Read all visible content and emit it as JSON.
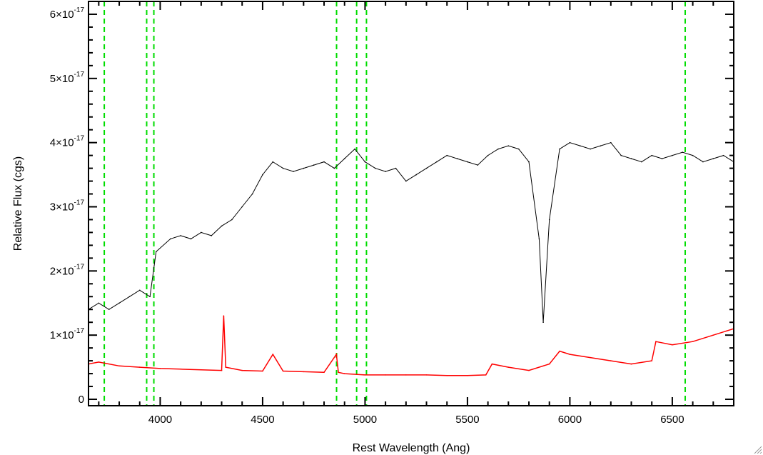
{
  "chart_data": {
    "type": "line",
    "xlabel": "Rest Wavelength (Ang)",
    "ylabel": "Relative Flux (cgs)",
    "xlim": [
      3650,
      6800
    ],
    "ylim": [
      -1e-18,
      6.2e-17
    ],
    "x_ticks": [
      4000,
      4500,
      5000,
      5500,
      6000,
      6500
    ],
    "x_tick_labels": [
      "4000",
      "4500",
      "5000",
      "5500",
      "6000",
      "6500"
    ],
    "y_ticks": [
      0,
      1e-17,
      2e-17,
      3e-17,
      4e-17,
      5e-17,
      6e-17
    ],
    "y_tick_labels": [
      {
        "mant": "0",
        "exp": ""
      },
      {
        "mant": "1×10",
        "exp": "-17"
      },
      {
        "mant": "2×10",
        "exp": "-17"
      },
      {
        "mant": "3×10",
        "exp": "-17"
      },
      {
        "mant": "4×10",
        "exp": "-17"
      },
      {
        "mant": "5×10",
        "exp": "-17"
      },
      {
        "mant": "6×10",
        "exp": "-17"
      }
    ],
    "grid": false,
    "reference_lines": {
      "x": [
        3727,
        3934,
        3969,
        4861,
        4959,
        5007,
        6563
      ],
      "color": "#00dd00",
      "style": "dashed"
    },
    "series": [
      {
        "color": "#000000",
        "x": [
          3650,
          3700,
          3750,
          3800,
          3850,
          3900,
          3950,
          3980,
          4050,
          4100,
          4150,
          4200,
          4250,
          4300,
          4350,
          4400,
          4450,
          4500,
          4550,
          4600,
          4650,
          4700,
          4750,
          4800,
          4850,
          4900,
          4950,
          5000,
          5050,
          5100,
          5150,
          5200,
          5250,
          5300,
          5350,
          5400,
          5450,
          5500,
          5550,
          5600,
          5650,
          5700,
          5750,
          5800,
          5850,
          5870,
          5900,
          5950,
          6000,
          6050,
          6100,
          6150,
          6200,
          6250,
          6300,
          6350,
          6400,
          6450,
          6500,
          6550,
          6600,
          6650,
          6700,
          6750,
          6800
        ],
        "y": [
          1.4e-17,
          1.5e-17,
          1.4e-17,
          1.5e-17,
          1.6e-17,
          1.7e-17,
          1.6e-17,
          2.3e-17,
          2.5e-17,
          2.55e-17,
          2.5e-17,
          2.6e-17,
          2.55e-17,
          2.7e-17,
          2.8e-17,
          3e-17,
          3.2e-17,
          3.5e-17,
          3.7e-17,
          3.6e-17,
          3.55e-17,
          3.6e-17,
          3.65e-17,
          3.7e-17,
          3.6e-17,
          3.75e-17,
          3.9e-17,
          3.7e-17,
          3.6e-17,
          3.55e-17,
          3.6e-17,
          3.4e-17,
          3.5e-17,
          3.6e-17,
          3.7e-17,
          3.8e-17,
          3.75e-17,
          3.7e-17,
          3.65e-17,
          3.8e-17,
          3.9e-17,
          3.95e-17,
          3.9e-17,
          3.7e-17,
          2.5e-17,
          1.2e-17,
          2.8e-17,
          3.9e-17,
          4e-17,
          3.95e-17,
          3.9e-17,
          3.95e-17,
          4e-17,
          3.8e-17,
          3.75e-17,
          3.7e-17,
          3.8e-17,
          3.75e-17,
          3.8e-17,
          3.85e-17,
          3.8e-17,
          3.7e-17,
          3.75e-17,
          3.8e-17,
          3.7e-17
        ]
      },
      {
        "color": "#ff0000",
        "x": [
          3650,
          3700,
          3800,
          3900,
          4000,
          4100,
          4200,
          4300,
          4310,
          4320,
          4400,
          4500,
          4550,
          4600,
          4700,
          4800,
          4860,
          4870,
          4900,
          5000,
          5100,
          5200,
          5300,
          5400,
          5500,
          5590,
          5620,
          5700,
          5800,
          5900,
          5950,
          6000,
          6100,
          6200,
          6300,
          6400,
          6420,
          6500,
          6600,
          6700,
          6800
        ],
        "y": [
          5.5e-18,
          5.8e-18,
          5.2e-18,
          5e-18,
          4.8e-18,
          4.7e-18,
          4.6e-18,
          4.5e-18,
          1.3e-17,
          5e-18,
          4.5e-18,
          4.4e-18,
          7e-18,
          4.4e-18,
          4.3e-18,
          4.2e-18,
          7e-18,
          4.2e-18,
          4e-18,
          3.8e-18,
          3.8e-18,
          3.8e-18,
          3.8e-18,
          3.7e-18,
          3.7e-18,
          3.8e-18,
          5.5e-18,
          5e-18,
          4.5e-18,
          5.5e-18,
          7.5e-18,
          7e-18,
          6.5e-18,
          6e-18,
          5.5e-18,
          6e-18,
          9e-18,
          8.5e-18,
          9e-18,
          1e-17,
          1.1e-17
        ]
      }
    ]
  }
}
